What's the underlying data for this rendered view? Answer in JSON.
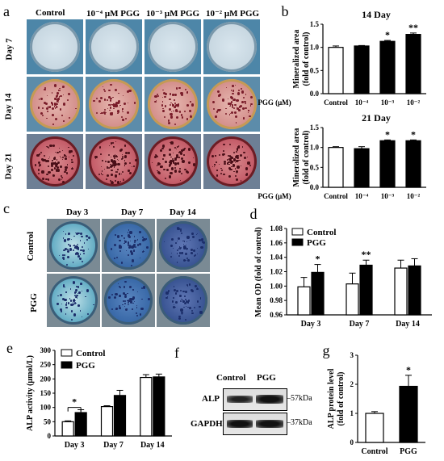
{
  "panels": {
    "a": {
      "label": "a",
      "columns": [
        "Control",
        "10⁻⁴ μM PGG",
        "10⁻³ μM PGG",
        "10⁻² μM PGG"
      ],
      "rows": [
        "Day 7",
        "Day 14",
        "Day 21"
      ]
    },
    "c": {
      "label": "c",
      "columns": [
        "Day 3",
        "Day 7",
        "Day 14"
      ],
      "rows": [
        "Control",
        "PGG"
      ]
    },
    "f": {
      "label": "f",
      "columns": [
        "Control",
        "PGG"
      ],
      "bands": [
        "ALP",
        "GAPDH"
      ],
      "sizes": [
        "57kDa",
        "37kDa"
      ]
    }
  },
  "chart_data": [
    {
      "id": "b-top",
      "panel_label": "b",
      "type": "bar",
      "title": "14 Day",
      "ylabel": "Mineralized area\n(fold of control)",
      "xprefix": "PGG (μM)",
      "categories": [
        "Control",
        "10⁻⁴",
        "10⁻³",
        "10⁻²"
      ],
      "values": [
        1.0,
        1.03,
        1.13,
        1.28
      ],
      "errors": [
        0.03,
        0.01,
        0.02,
        0.03
      ],
      "fills": [
        "white",
        "black",
        "black",
        "black"
      ],
      "annotations": [
        "",
        "",
        "*",
        "**"
      ],
      "ylim": [
        0,
        1.5
      ],
      "yticks": [
        0.0,
        0.5,
        1.0,
        1.5
      ],
      "ytick_labels": [
        "0.0",
        "0.5",
        "1.0",
        "1.5"
      ]
    },
    {
      "id": "b-bottom",
      "panel_label": "",
      "type": "bar",
      "title": "21 Day",
      "ylabel": "Mineralized area\n(fold of control)",
      "xprefix": "PGG (μM)",
      "categories": [
        "Control",
        "10⁻⁴",
        "10⁻³",
        "10⁻²"
      ],
      "values": [
        1.0,
        0.97,
        1.17,
        1.17
      ],
      "errors": [
        0.02,
        0.05,
        0.02,
        0.02
      ],
      "fills": [
        "white",
        "black",
        "black",
        "black"
      ],
      "annotations": [
        "",
        "",
        "*",
        "*"
      ],
      "ylim": [
        0,
        1.5
      ],
      "yticks": [
        0.0,
        0.5,
        1.0,
        1.5
      ],
      "ytick_labels": [
        "0.0",
        "0.5",
        "1.0",
        "1.5"
      ]
    },
    {
      "id": "d",
      "panel_label": "d",
      "type": "bar",
      "ylabel": "Mean OD (fold of control)",
      "categories": [
        "Day 3",
        "Day 7",
        "Day 14"
      ],
      "series": [
        {
          "name": "Control",
          "fill": "white",
          "values": [
            0.999,
            1.003,
            1.025
          ],
          "errors": [
            0.013,
            0.015,
            0.011
          ]
        },
        {
          "name": "PGG",
          "fill": "black",
          "values": [
            1.019,
            1.029,
            1.028
          ],
          "errors": [
            0.011,
            0.007,
            0.01
          ]
        }
      ],
      "annotations": [
        "*",
        "**",
        ""
      ],
      "ylim": [
        0.96,
        1.08
      ],
      "yticks": [
        0.96,
        0.98,
        1.0,
        1.02,
        1.04,
        1.06,
        1.08
      ],
      "ytick_labels": [
        "0.96",
        "0.98",
        "1.00",
        "1.02",
        "1.04",
        "1.06",
        "1.08"
      ],
      "legend": "top-left"
    },
    {
      "id": "e",
      "panel_label": "e",
      "type": "bar",
      "ylabel": "ALP activity (μmol/L)",
      "categories": [
        "Day 3",
        "Day 7",
        "Day 14"
      ],
      "series": [
        {
          "name": "Control",
          "fill": "white",
          "values": [
            50,
            103,
            205
          ],
          "errors": [
            3,
            3,
            10
          ]
        },
        {
          "name": "PGG",
          "fill": "black",
          "values": [
            82,
            142,
            207
          ],
          "errors": [
            10,
            18,
            10
          ]
        }
      ],
      "annotations": [
        "*",
        "",
        ""
      ],
      "ylim": [
        0,
        300
      ],
      "yticks": [
        0,
        50,
        100,
        150,
        200,
        250,
        300
      ],
      "ytick_labels": [
        "0",
        "50",
        "100",
        "150",
        "200",
        "250",
        "300"
      ],
      "legend": "top-left"
    },
    {
      "id": "g",
      "panel_label": "g",
      "type": "bar",
      "ylabel": "ALP protein level\n(fold of control)",
      "categories": [
        "Control",
        "PGG"
      ],
      "values": [
        1.0,
        1.93
      ],
      "errors": [
        0.06,
        0.38
      ],
      "fills": [
        "white",
        "black"
      ],
      "annotations": [
        "",
        "*"
      ],
      "ylim": [
        0,
        3
      ],
      "yticks": [
        0,
        1,
        2,
        3
      ],
      "ytick_labels": [
        "0",
        "1",
        "2",
        "3"
      ]
    }
  ]
}
